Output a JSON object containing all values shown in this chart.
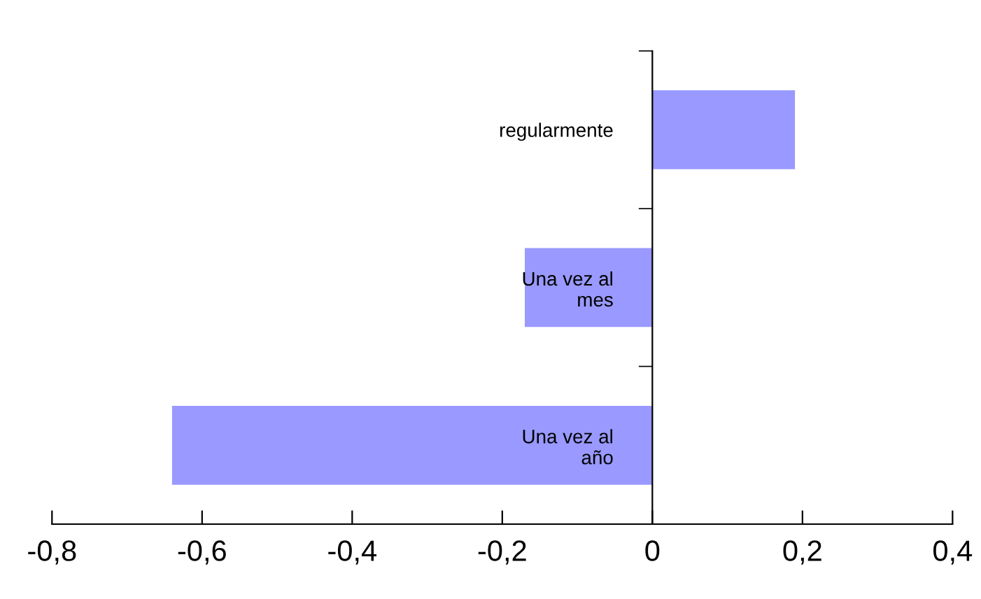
{
  "chart_data": {
    "type": "bar",
    "orientation": "horizontal",
    "categories": [
      "regularmente",
      "Una vez al\nmes",
      "Una vez al\naño"
    ],
    "values": [
      0.19,
      -0.17,
      -0.64
    ],
    "color": "#9999ff",
    "xlim": [
      -0.8,
      0.4
    ],
    "xticks": [
      {
        "value": -0.8,
        "label": "-0,8"
      },
      {
        "value": -0.6,
        "label": "-0,6"
      },
      {
        "value": -0.4,
        "label": "-0,4"
      },
      {
        "value": -0.2,
        "label": "-0,2"
      },
      {
        "value": 0,
        "label": "0"
      },
      {
        "value": 0.2,
        "label": "0,2"
      },
      {
        "value": 0.4,
        "label": "0,4"
      }
    ],
    "grid": false,
    "legend": false
  }
}
